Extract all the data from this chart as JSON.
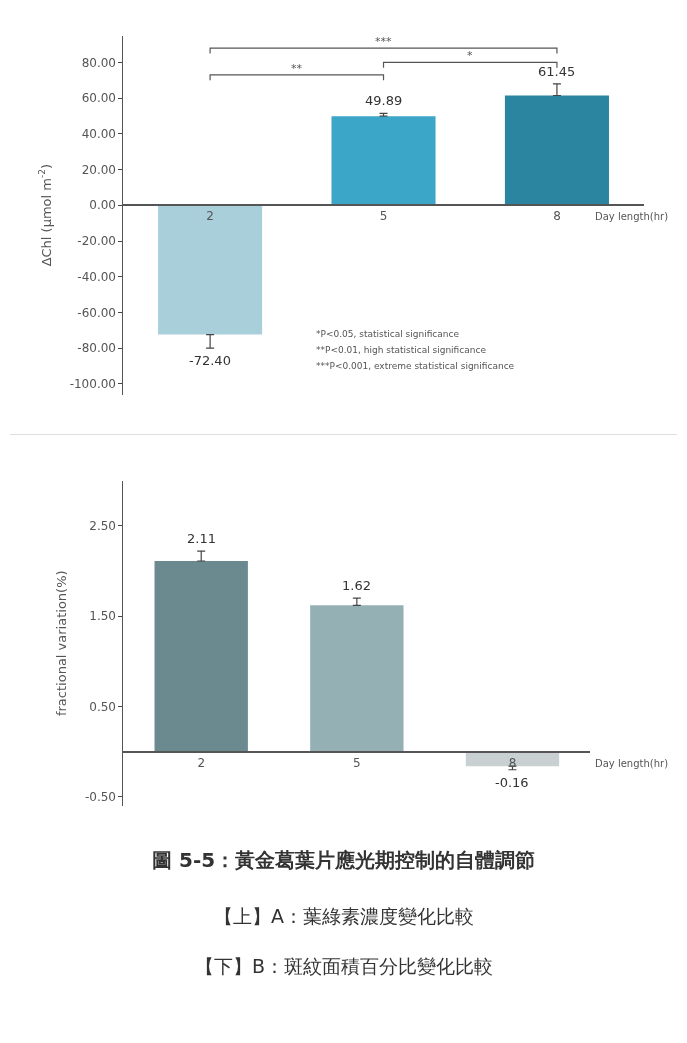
{
  "chart_data": [
    {
      "type": "bar",
      "categories": [
        "2",
        "5",
        "8"
      ],
      "values": [
        -72.4,
        49.89,
        61.45
      ],
      "colors": [
        "#a9cfda",
        "#3ba6c8",
        "#2b84a0"
      ],
      "errors": [
        [
          -80,
          -72.4
        ],
        [
          49.89,
          51.5
        ],
        [
          61.45,
          68
        ]
      ],
      "value_labels": [
        "-72.40",
        "49.89",
        "61.45"
      ],
      "ylabel": "ΔChl (μmol m$^{-2}$)",
      "xlabel": "Day length(hr)",
      "ylim": [
        -106,
        95
      ],
      "yticks": [
        {
          "value": -100,
          "label": "-100.00"
        },
        {
          "value": -80,
          "label": "-80.00"
        },
        {
          "value": -60,
          "label": "-60.00"
        },
        {
          "value": -40,
          "label": "-40.00"
        },
        {
          "value": -20,
          "label": "-20.00"
        },
        {
          "value": 0,
          "label": "0.00"
        },
        {
          "value": 20,
          "label": "20.00"
        },
        {
          "value": 40,
          "label": "40.00"
        },
        {
          "value": 60,
          "label": "60.00"
        },
        {
          "value": 80,
          "label": "80.00"
        }
      ],
      "annotations": [
        "***",
        "*",
        "**",
        "*P<0.05, statistical significance",
        "**P<0.01, high statistical significance",
        "***P<0.001, extreme statistical significance"
      ]
    },
    {
      "type": "bar",
      "categories": [
        "2",
        "5",
        "8"
      ],
      "values": [
        2.11,
        1.62,
        -0.16
      ],
      "colors": [
        "#6b8a90",
        "#94b0b5",
        "#c8d0d2"
      ],
      "errors": [
        [
          2.11,
          2.22
        ],
        [
          1.62,
          1.7
        ],
        [
          -0.2,
          -0.16
        ]
      ],
      "value_labels": [
        "2.11",
        "1.62",
        "-0.16"
      ],
      "ylabel": "fractional variation(%)",
      "xlabel": "Day length(hr)",
      "ylim": [
        -0.6,
        3.0
      ],
      "yticks": [
        {
          "value": -0.5,
          "label": "-0.50"
        },
        {
          "value": 0.5,
          "label": "0.50"
        },
        {
          "value": 1.5,
          "label": "1.50"
        },
        {
          "value": 2.5,
          "label": "2.50"
        }
      ],
      "annotations": [
        "圖 5-5：黃金葛葉片應光期控制的自體調節",
        "【上】A：葉綠素濃度變化比較",
        "【下】B：斑紋面積百分比變化比較"
      ]
    }
  ]
}
